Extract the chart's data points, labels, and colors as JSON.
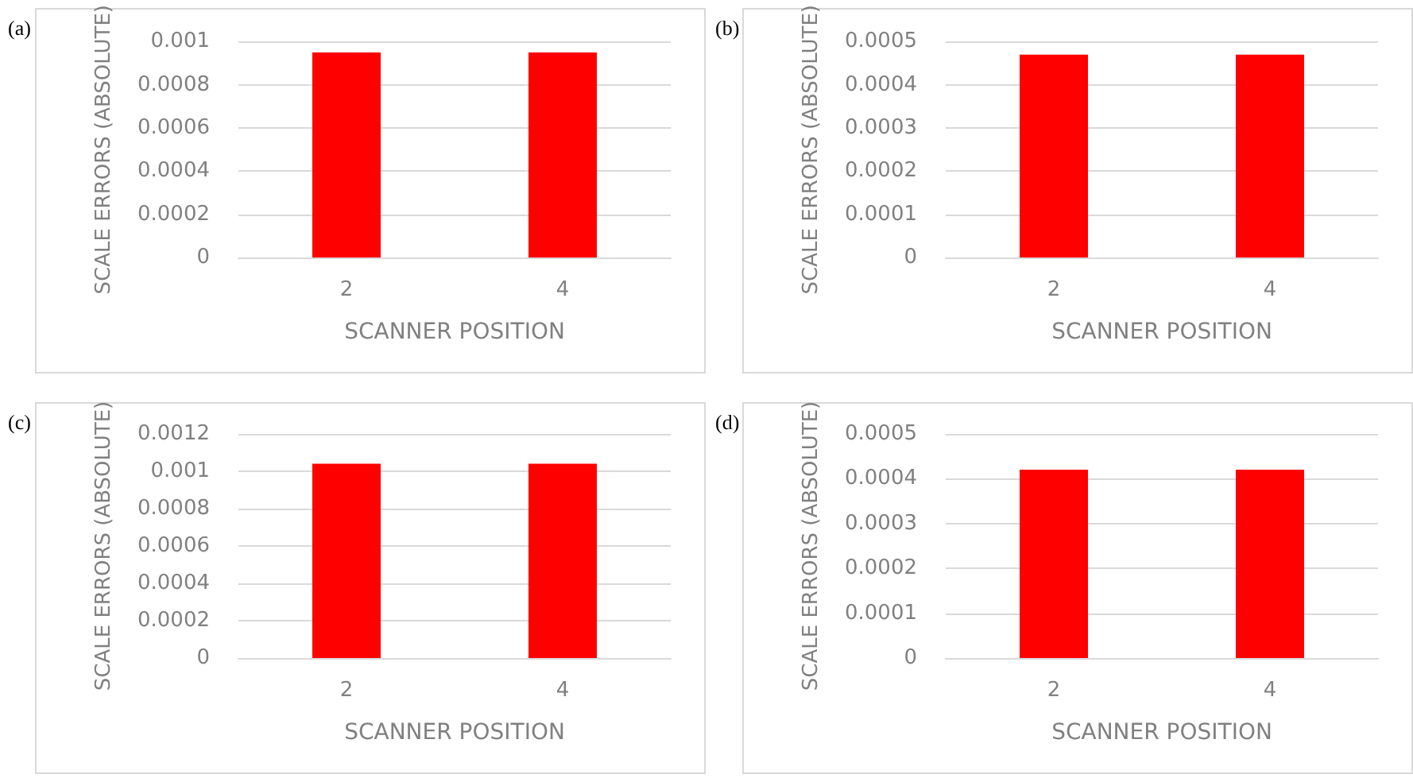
{
  "chart_data": [
    {
      "type": "bar",
      "title": "(a)",
      "xlabel": "SCANNER POSITION",
      "ylabel": "SCALE ERRORS (ABSOLUTE)",
      "categories": [
        "2",
        "4"
      ],
      "values": [
        0.00095,
        0.00095
      ],
      "color": "#ff0000",
      "ylim": [
        0,
        0.001
      ],
      "yticks": [
        0,
        0.0002,
        0.0004,
        0.0006,
        0.0008,
        0.001
      ],
      "grid": "y"
    },
    {
      "type": "bar",
      "title": "(b)",
      "xlabel": "SCANNER POSITION",
      "ylabel": "SCALE ERRORS (ABSOLUTE)",
      "categories": [
        "2",
        "4"
      ],
      "values": [
        0.00047,
        0.00047
      ],
      "color": "#ff0000",
      "ylim": [
        0,
        0.0005
      ],
      "yticks": [
        0,
        0.0001,
        0.0002,
        0.0003,
        0.0004,
        0.0005
      ],
      "grid": "y"
    },
    {
      "type": "bar",
      "title": "(c)",
      "xlabel": "SCANNER POSITION",
      "ylabel": "SCALE ERRORS (ABSOLUTE)",
      "categories": [
        "2",
        "4"
      ],
      "values": [
        0.00104,
        0.00104
      ],
      "color": "#ff0000",
      "ylim": [
        0,
        0.0012
      ],
      "yticks": [
        0,
        0.0002,
        0.0004,
        0.0006,
        0.0008,
        0.001,
        0.0012
      ],
      "grid": "y"
    },
    {
      "type": "bar",
      "title": "(d)",
      "xlabel": "SCANNER POSITION",
      "ylabel": "SCALE ERRORS (ABSOLUTE)",
      "categories": [
        "2",
        "4"
      ],
      "values": [
        0.00042,
        0.00042
      ],
      "color": "#ff0000",
      "ylim": [
        0,
        0.0005
      ],
      "yticks": [
        0,
        0.0001,
        0.0002,
        0.0003,
        0.0004,
        0.0005
      ],
      "grid": "y"
    }
  ]
}
